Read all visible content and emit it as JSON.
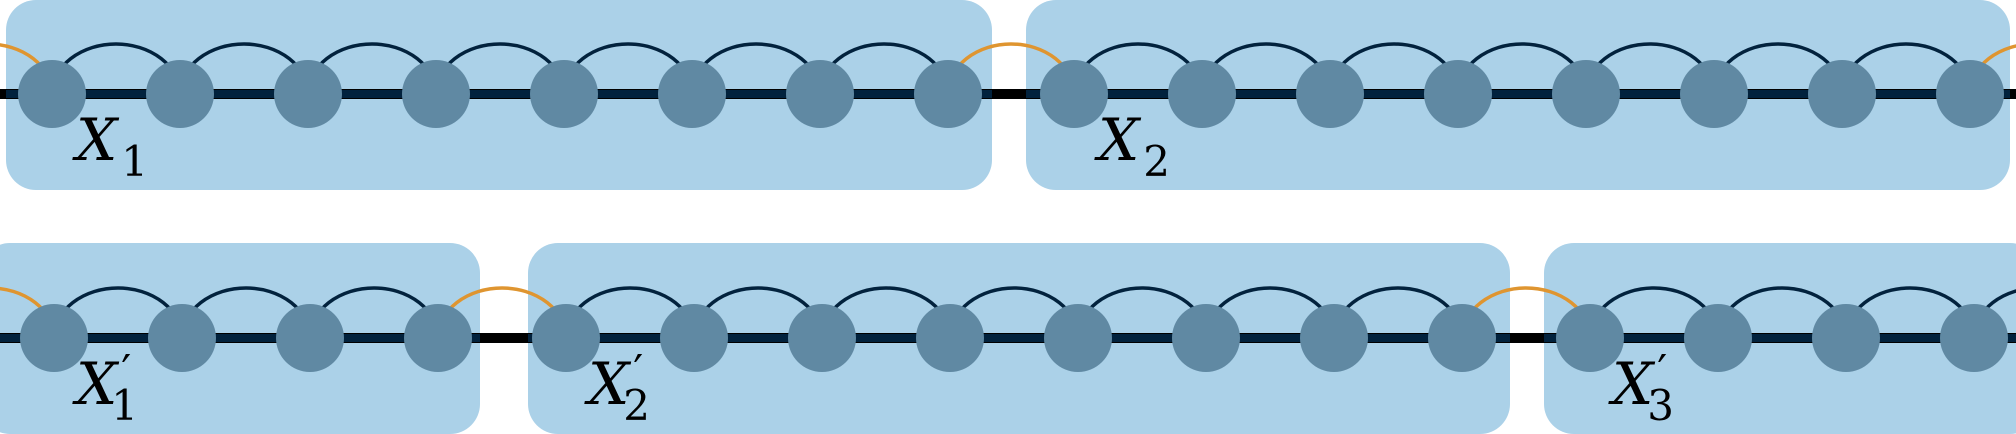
{
  "colors": {
    "block_fill": "#abd1e8",
    "chain_line": "#02223d",
    "gap_line": "#000000",
    "node_fill": "#6089a3",
    "inner_arc": "#02223d",
    "boundary_arc": "#df9530"
  },
  "rows": [
    {
      "blocks": [
        {
          "label": "X",
          "sub": "1",
          "prime": false,
          "nodes": 8
        },
        {
          "label": "X",
          "sub": "2",
          "prime": false,
          "nodes": 8
        }
      ]
    },
    {
      "blocks": [
        {
          "label": "X",
          "sub": "1",
          "prime": true,
          "nodes": 4
        },
        {
          "label": "X",
          "sub": "2",
          "prime": true,
          "nodes": 8
        },
        {
          "label": "X",
          "sub": "3",
          "prime": true,
          "nodes": 4
        }
      ]
    }
  ]
}
